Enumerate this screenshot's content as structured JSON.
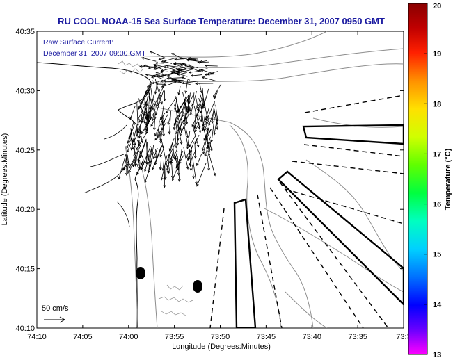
{
  "chart_data": {
    "type": "map",
    "title": "RU COOL  NOAA-15  Sea Surface Temperature:  December 31, 2007 0950 GMT",
    "annotation_line1": "Raw Surface Current:",
    "annotation_line2": "December 31, 2007 09:00 GMT",
    "scale_label": "50 cm/s",
    "xlabel": "Longitude (Degrees:Minutes)",
    "ylabel": "Latitude (Degrees:Minutes)",
    "colorbar_label": "Temperature (°C)",
    "x_ticks": [
      "74:10",
      "74:05",
      "74:00",
      "73:55",
      "73:50",
      "73:45",
      "73:40",
      "73:35",
      "73:3"
    ],
    "y_ticks": [
      "40:35",
      "40:30",
      "40:25",
      "40:20",
      "40:15",
      "40:10"
    ],
    "colorbar_ticks": [
      "20",
      "19",
      "18",
      "17",
      "16",
      "15",
      "14",
      "13"
    ],
    "colorbar_range": [
      13,
      20
    ],
    "colormap": [
      "#ff00ff",
      "#6a00ff",
      "#0000ff",
      "#0070ff",
      "#00d0ff",
      "#00ffc0",
      "#00ff40",
      "#60ff00",
      "#d0ff00",
      "#ffe000",
      "#ff9000",
      "#ff2000",
      "#c00000",
      "#8a0000"
    ],
    "title_color": "#1a1aa0",
    "land_color": "#ffffff",
    "sea_color": "#ffffff"
  }
}
